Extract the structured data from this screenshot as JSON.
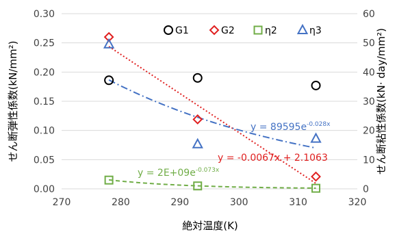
{
  "chart_data": {
    "type": "scatter",
    "xlabel": "絶対温度(K)",
    "ylabel": "せん断弾性係数(kN/mm²)",
    "ylabel_right": "せん断粘性係数(kN· day/mm²)",
    "xlim": [
      270,
      320
    ],
    "ylim": [
      0,
      0.3
    ],
    "ylim_right": [
      0,
      60
    ],
    "x_ticks": [
      "270",
      "280",
      "290",
      "300",
      "310",
      "320"
    ],
    "y_ticks": [
      "0.00",
      "0.05",
      "0.10",
      "0.15",
      "0.20",
      "0.25",
      "0.30"
    ],
    "y_ticks_right": [
      "0",
      "10",
      "20",
      "30",
      "40",
      "50",
      "60"
    ],
    "grid": "horizontal",
    "legend_position": "top-right",
    "series": [
      {
        "name": "G1",
        "axis": "left",
        "marker": "circle",
        "color": "#000000",
        "x": [
          278,
          293,
          313
        ],
        "y": [
          0.186,
          0.19,
          0.177
        ]
      },
      {
        "name": "G2",
        "axis": "left",
        "marker": "diamond",
        "color": "#e02020",
        "x": [
          278,
          293,
          313
        ],
        "y": [
          0.26,
          0.119,
          0.021
        ]
      },
      {
        "name": "η2",
        "axis": "right",
        "marker": "square",
        "color": "#70ad47",
        "x": [
          278,
          293,
          313
        ],
        "y": [
          3.0,
          1.0,
          0.2
        ]
      },
      {
        "name": "η3",
        "axis": "right",
        "marker": "triangle",
        "color": "#4472c4",
        "x": [
          278,
          293,
          313
        ],
        "y": [
          49.5,
          15.3,
          17.2
        ]
      }
    ],
    "trendlines": [
      {
        "series": "G2",
        "kind": "linear",
        "axis": "left",
        "color": "#e02020",
        "style": "dotted",
        "x_range": [
          278,
          313
        ],
        "slope": -0.0067,
        "intercept": 2.1063,
        "label": "y = -0.0067x + 2.1063"
      },
      {
        "series": "η3",
        "kind": "exponential",
        "axis": "right",
        "color": "#4472c4",
        "style": "dashdot",
        "x_range": [
          278,
          313
        ],
        "a": 89595,
        "b": -0.028,
        "label_main": "y = 89595e",
        "label_exp": "-0.028x"
      },
      {
        "series": "η2",
        "kind": "exponential",
        "axis": "right",
        "color": "#70ad47",
        "style": "dashed",
        "x_range": [
          278,
          313
        ],
        "a": 2000000000.0,
        "b": -0.073,
        "label_main": "y = 2E+09e",
        "label_exp": "-0.073x"
      }
    ]
  }
}
